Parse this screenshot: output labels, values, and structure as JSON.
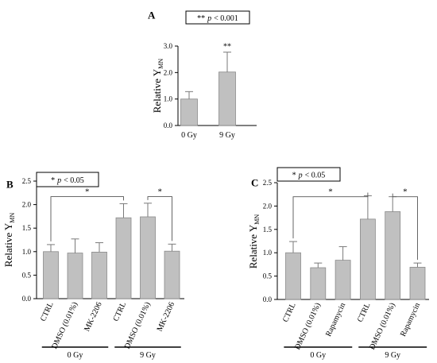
{
  "chart_data": [
    {
      "panel_label": "A",
      "type": "bar",
      "annotation": "** p < 0.001",
      "annotation_parts": [
        "**",
        "p",
        "< 0.001"
      ],
      "ylabel": "Relative Y",
      "ylabel_sub": "MN",
      "ylim": [
        0,
        3
      ],
      "yticks": [
        "0.0",
        "1.0",
        "2.0",
        "3.0"
      ],
      "categories": [
        "0 Gy",
        "9 Gy"
      ],
      "values": [
        1.0,
        2.02
      ],
      "errors": [
        0.28,
        0.75
      ],
      "bar_markers": [
        "",
        "**"
      ],
      "brackets": [],
      "groups": []
    },
    {
      "panel_label": "B",
      "type": "bar",
      "annotation": "* p < 0.05",
      "annotation_parts": [
        "*",
        "p",
        "< 0.05"
      ],
      "ylabel": "Relative Y",
      "ylabel_sub": "MN",
      "ylim": [
        0,
        2.5
      ],
      "yticks": [
        "0.0",
        "0.5",
        "1.0",
        "1.5",
        "2.0",
        "2.5"
      ],
      "categories": [
        "CTRL",
        "DMSO (0.01%)",
        "MK-2206",
        "CTRL",
        "DMSO (0.01%)",
        "MK-2206"
      ],
      "values": [
        1.0,
        0.97,
        0.99,
        1.72,
        1.74,
        1.01
      ],
      "errors": [
        0.15,
        0.3,
        0.2,
        0.3,
        0.29,
        0.15
      ],
      "bar_markers": [
        "",
        "",
        "",
        "",
        "",
        ""
      ],
      "brackets": [
        {
          "from": 0,
          "to": 3,
          "label": "*",
          "y": 2.17
        },
        {
          "from": 4,
          "to": 5,
          "label": "*",
          "y": 2.17
        }
      ],
      "groups": [
        {
          "label": "0 Gy",
          "from": 0,
          "to": 2
        },
        {
          "label": "9 Gy",
          "from": 3,
          "to": 5
        }
      ]
    },
    {
      "panel_label": "C",
      "type": "bar",
      "annotation": "* p < 0.05",
      "annotation_parts": [
        "*",
        "p",
        "< 0.05"
      ],
      "ylabel": "Relative Y",
      "ylabel_sub": "MN",
      "ylim": [
        0,
        2.5
      ],
      "yticks": [
        "0.0",
        "0.5",
        "1.0",
        "1.5",
        "2.0",
        "2.5"
      ],
      "categories": [
        "CTRL",
        "DMSO (0.01%)",
        "Rapamycin",
        "CTRL",
        "DMSO (0.01%)",
        "Rapamycin"
      ],
      "values": [
        1.0,
        0.68,
        0.84,
        1.72,
        1.88,
        0.69
      ],
      "errors": [
        0.24,
        0.1,
        0.29,
        0.5,
        0.32,
        0.09
      ],
      "bar_markers": [
        "",
        "",
        "",
        "",
        "",
        ""
      ],
      "brackets": [
        {
          "from": 0,
          "to": 3,
          "label": "*",
          "y": 2.2
        },
        {
          "from": 4,
          "to": 5,
          "label": "*",
          "y": 2.2
        }
      ],
      "groups": [
        {
          "label": "0 Gy",
          "from": 0,
          "to": 2
        },
        {
          "label": "9 Gy",
          "from": 3,
          "to": 5
        }
      ]
    }
  ],
  "colors": {
    "bar_fill": "#c0c0c0",
    "bar_stroke": "#8a8a8a",
    "error_bar": "#7a7a7a",
    "axis": "#000000",
    "bracket": "#555555"
  }
}
